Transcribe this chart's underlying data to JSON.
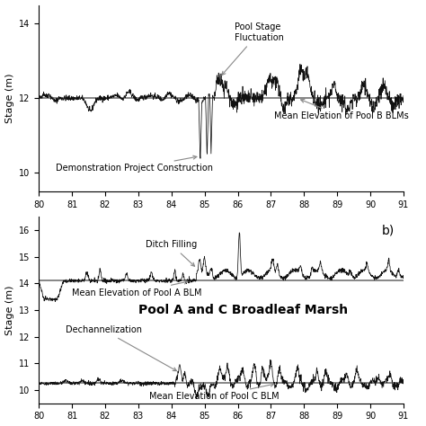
{
  "top_panel": {
    "ylim": [
      9.5,
      14.5
    ],
    "yticks": [
      10,
      12,
      14
    ],
    "xlim": [
      80,
      91
    ],
    "xticks": [
      80,
      81,
      82,
      83,
      84,
      85,
      86,
      87,
      88,
      89,
      90,
      91
    ],
    "mean_elev_B": 12.0,
    "ylabel": "Stage (m)"
  },
  "bottom_panel": {
    "ylim": [
      9.5,
      16.5
    ],
    "yticks": [
      10,
      11,
      12,
      13,
      14,
      15,
      16
    ],
    "xlim": [
      80,
      91
    ],
    "xticks": [
      80,
      81,
      82,
      83,
      84,
      85,
      86,
      87,
      88,
      89,
      90,
      91
    ],
    "mean_elev_A": 14.1,
    "mean_elev_C": 10.25,
    "ylabel": "Stage (m)",
    "label_b": "b)",
    "center_title": "Pool A and C Broadleaf Marsh"
  },
  "line_color": "#111111",
  "mean_line_color": "#666666",
  "background": "#ffffff",
  "font_size_label": 8,
  "font_size_annot": 7,
  "font_size_title": 10
}
